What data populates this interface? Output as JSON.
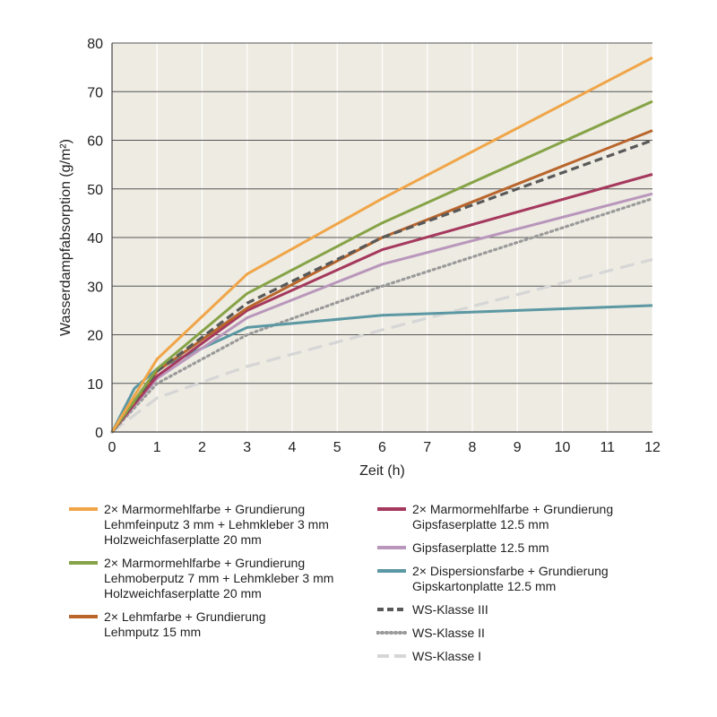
{
  "chart_data": {
    "type": "line",
    "xlabel": "Zeit (h)",
    "ylabel": "Wasserdampfabsorption (g/m²)",
    "xlim": [
      0,
      12
    ],
    "ylim": [
      0,
      80
    ],
    "xticks": [
      0,
      1,
      2,
      3,
      4,
      5,
      6,
      7,
      8,
      9,
      10,
      11,
      12
    ],
    "yticks": [
      0,
      10,
      20,
      30,
      40,
      50,
      60,
      70,
      80
    ],
    "grid": "vertical",
    "background": "#edebe2",
    "legend_position": "bottom",
    "series": [
      {
        "name": [
          "2× Marmormehlfarbe + Grundierung",
          "Lehmfeinputz 3 mm + Lehmkleber 3 mm",
          "Holzweichfaserplatte 20 mm"
        ],
        "color": "#f0a548",
        "style": "solid",
        "x": [
          0,
          1,
          3,
          6,
          12
        ],
        "y": [
          0,
          15,
          32.5,
          48,
          77
        ]
      },
      {
        "name": [
          "2× Marmormehlfarbe + Grundierung",
          "Lehmoberputz 7 mm + Lehmkleber 3 mm",
          "Holzweichfaserplatte 20 mm"
        ],
        "color": "#86a347",
        "style": "solid",
        "x": [
          0,
          1,
          3,
          6,
          12
        ],
        "y": [
          0,
          13,
          28.5,
          43,
          68
        ]
      },
      {
        "name": [
          "2× Lehmfarbe + Grundierung",
          "Lehmputz 15 mm"
        ],
        "color": "#b9652c",
        "style": "solid",
        "x": [
          0,
          1,
          3,
          6,
          12
        ],
        "y": [
          0,
          12.5,
          25.5,
          40,
          62
        ]
      },
      {
        "name": [
          "2× Marmormehlfarbe + Grundierung",
          "Gipsfaserplatte 12.5 mm"
        ],
        "color": "#a5385d",
        "style": "solid",
        "x": [
          0,
          1,
          3,
          6,
          12
        ],
        "y": [
          0,
          11.5,
          25,
          37.5,
          53
        ]
      },
      {
        "name": [
          "Gipsfaserplatte 12.5 mm"
        ],
        "color": "#b996bb",
        "style": "solid",
        "x": [
          0,
          1,
          3,
          6,
          12
        ],
        "y": [
          0,
          11,
          23.5,
          34.5,
          49
        ]
      },
      {
        "name": [
          "2× Dispersionsfarbe + Grundierung",
          "Gipskartonplatte 12.5 mm"
        ],
        "color": "#5c98a3",
        "style": "solid",
        "x": [
          0,
          0.5,
          1,
          3,
          6,
          12
        ],
        "y": [
          0,
          9,
          13,
          21.5,
          24,
          26
        ]
      },
      {
        "name": [
          "WS-Klasse III"
        ],
        "color": "#595959",
        "style": "dashed",
        "x": [
          0,
          1,
          3,
          6,
          12
        ],
        "y": [
          0,
          12.5,
          26.5,
          40,
          60
        ]
      },
      {
        "name": [
          "WS-Klasse II"
        ],
        "color": "#9a9a9a",
        "style": "dotted",
        "x": [
          0,
          1,
          3,
          6,
          12
        ],
        "y": [
          0,
          10,
          20,
          30,
          48
        ]
      },
      {
        "name": [
          "WS-Klasse I"
        ],
        "color": "#d6d6d6",
        "style": "longdash",
        "x": [
          0,
          1,
          3,
          6,
          12
        ],
        "y": [
          0,
          7,
          13.5,
          21,
          35.5
        ]
      }
    ]
  },
  "legend": {
    "left": [
      {
        "series": 0,
        "lines": [
          "2× Marmormehlfarbe + Grundierung",
          "Lehmfeinputz 3 mm + Lehmkleber 3 mm",
          "Holzweichfaserplatte 20 mm"
        ]
      },
      {
        "series": 1,
        "lines": [
          "2× Marmormehlfarbe + Grundierung",
          "Lehmoberputz 7 mm + Lehmkleber 3 mm",
          "Holzweichfaserplatte 20 mm"
        ]
      },
      {
        "series": 2,
        "lines": [
          "2× Lehmfarbe + Grundierung",
          "Lehmputz 15 mm"
        ]
      }
    ],
    "right": [
      {
        "series": 3,
        "lines": [
          "2× Marmormehlfarbe + Grundierung",
          "Gipsfaserplatte 12.5 mm"
        ]
      },
      {
        "series": 4,
        "lines": [
          "Gipsfaserplatte 12.5 mm"
        ]
      },
      {
        "series": 5,
        "lines": [
          "2× Dispersionsfarbe + Grundierung",
          "Gipskartonplatte 12.5 mm"
        ]
      },
      {
        "series": 6,
        "lines": [
          "WS-Klasse III"
        ]
      },
      {
        "series": 7,
        "lines": [
          "WS-Klasse II"
        ]
      },
      {
        "series": 8,
        "lines": [
          "WS-Klasse I"
        ]
      }
    ]
  }
}
